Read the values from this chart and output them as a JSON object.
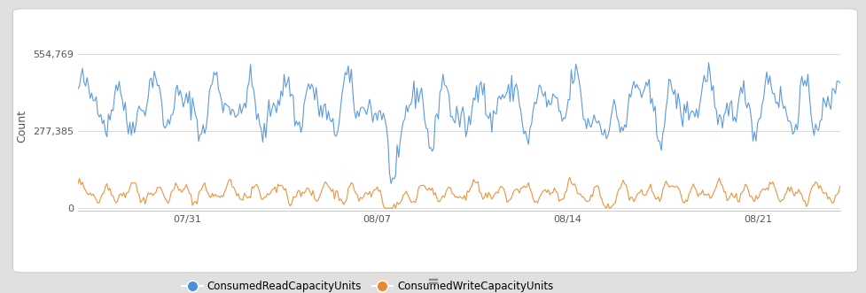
{
  "title_ylabel": "Count",
  "yticks": [
    0,
    277385,
    554769
  ],
  "ytick_labels": [
    "0",
    "277,385",
    "554,769"
  ],
  "ylim": [
    -10000,
    600000
  ],
  "xtick_labels": [
    "07/31",
    "08/07",
    "08/14",
    "08/21"
  ],
  "blue_color": "#4a90d9",
  "orange_color": "#e8892b",
  "bg_color": "#ffffff",
  "outer_bg": "#e0e0e0",
  "legend_blue": "ConsumedReadCapacityUnits",
  "legend_orange": "ConsumedWriteCapacityUnits",
  "grid_color": "#cccccc",
  "n_points": 500,
  "blue_base": 370000,
  "blue_amplitude": 130000,
  "orange_base": 55000,
  "orange_amplitude": 45000,
  "equals_text": "=",
  "font_color": "#555555"
}
